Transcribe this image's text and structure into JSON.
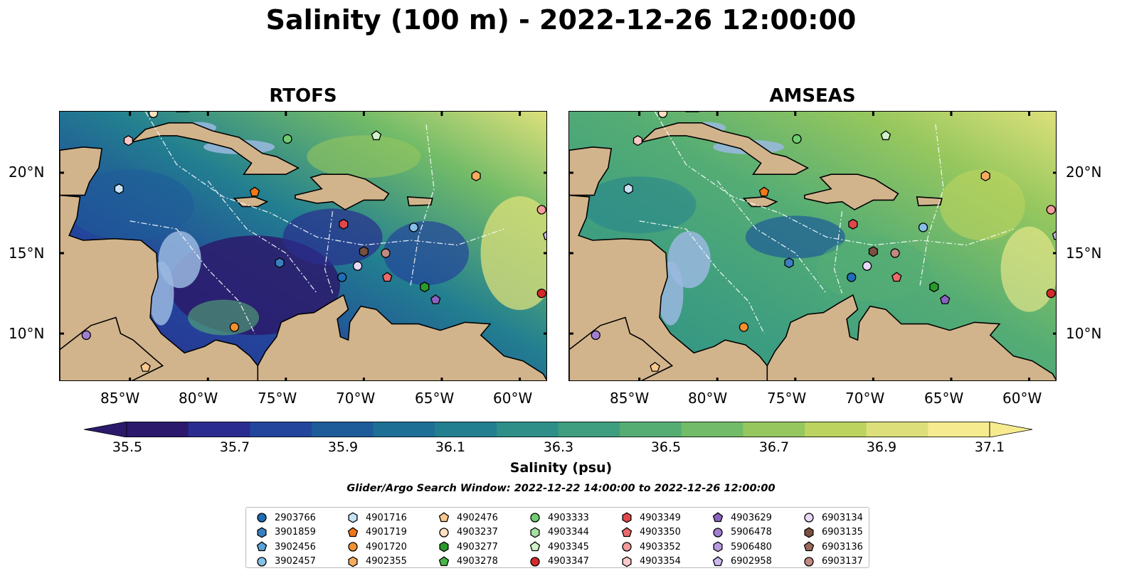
{
  "title": "Salinity (100 m) - 2022-12-26 12:00:00",
  "maps": [
    {
      "title": "RTOFS",
      "style": "rtofs"
    },
    {
      "title": "AMSEAS",
      "style": "amseas"
    }
  ],
  "axes": {
    "lon_ticks": [
      "85°W",
      "80°W",
      "75°W",
      "70°W",
      "65°W",
      "60°W"
    ],
    "lat_ticks": [
      "20°N",
      "15°N",
      "10°N"
    ],
    "lon_range": [
      -89.5,
      -58.2
    ],
    "lat_range": [
      7.0,
      23.8
    ]
  },
  "colorbar": {
    "label": "Salinity (psu)",
    "ticks": [
      "35.5",
      "35.7",
      "35.9",
      "36.1",
      "36.3",
      "36.5",
      "36.7",
      "36.9",
      "37.1"
    ],
    "range": [
      35.4,
      37.2
    ],
    "colors": [
      "#2b1a6b",
      "#2a2d8f",
      "#23459b",
      "#1e5b99",
      "#1d6f96",
      "#227f90",
      "#2d8f88",
      "#3e9e7f",
      "#55ad74",
      "#72bb68",
      "#96c75e",
      "#bcd35f",
      "#dde07a",
      "#f6ec8f"
    ],
    "extend": "both"
  },
  "search_window": "Glider/Argo Search Window: 2022-12-22 14:00:00 to 2022-12-26 12:00:00",
  "legend": [
    {
      "id": "2903766",
      "marker": "circle",
      "color": "#1f6db5"
    },
    {
      "id": "3901859",
      "marker": "hexagon",
      "color": "#3a80c0"
    },
    {
      "id": "3902456",
      "marker": "pentagon",
      "color": "#5aa3d8"
    },
    {
      "id": "3902457",
      "marker": "circle",
      "color": "#86bfe8"
    },
    {
      "id": "4901716",
      "marker": "hexagon",
      "color": "#c6e2f5"
    },
    {
      "id": "4901719",
      "marker": "pentagon",
      "color": "#f07818"
    },
    {
      "id": "4901720",
      "marker": "circle",
      "color": "#f39030"
    },
    {
      "id": "4902355",
      "marker": "hexagon",
      "color": "#f6ab5e"
    },
    {
      "id": "4902476",
      "marker": "pentagon",
      "color": "#f9c88e"
    },
    {
      "id": "4903237",
      "marker": "circle",
      "color": "#fde0c0"
    },
    {
      "id": "4903277",
      "marker": "hexagon",
      "color": "#2a9a2a"
    },
    {
      "id": "4903278",
      "marker": "pentagon",
      "color": "#48b648"
    },
    {
      "id": "4903333",
      "marker": "circle",
      "color": "#6fcc6f"
    },
    {
      "id": "4903344",
      "marker": "hexagon",
      "color": "#a4e0a0"
    },
    {
      "id": "4903345",
      "marker": "pentagon",
      "color": "#d0f2c8"
    },
    {
      "id": "4903347",
      "marker": "circle",
      "color": "#d42a2a"
    },
    {
      "id": "4903349",
      "marker": "hexagon",
      "color": "#e04848"
    },
    {
      "id": "4903350",
      "marker": "pentagon",
      "color": "#ec6a6a"
    },
    {
      "id": "4903352",
      "marker": "circle",
      "color": "#f49a9a"
    },
    {
      "id": "4903354",
      "marker": "hexagon",
      "color": "#fac8c8"
    },
    {
      "id": "4903629",
      "marker": "pentagon",
      "color": "#8a62c0"
    },
    {
      "id": "5906478",
      "marker": "circle",
      "color": "#a07fd0"
    },
    {
      "id": "5906480",
      "marker": "hexagon",
      "color": "#b89ae0"
    },
    {
      "id": "6902958",
      "marker": "pentagon",
      "color": "#cdb8ee"
    },
    {
      "id": "6903134",
      "marker": "circle",
      "color": "#e8d8f8"
    },
    {
      "id": "6903135",
      "marker": "hexagon",
      "color": "#7a5040"
    },
    {
      "id": "6903136",
      "marker": "pentagon",
      "color": "#9a6a5a"
    },
    {
      "id": "6903137",
      "marker": "circle",
      "color": "#c08a80"
    }
  ],
  "floats": [
    {
      "id": "2903766",
      "lon": -71.4,
      "lat": 13.5
    },
    {
      "id": "3901859",
      "lon": -75.4,
      "lat": 14.4
    },
    {
      "id": "3902457",
      "lon": -66.8,
      "lat": 16.6
    },
    {
      "id": "4901716",
      "lon": -85.7,
      "lat": 19.0
    },
    {
      "id": "4901719",
      "lon": -77.0,
      "lat": 18.8
    },
    {
      "id": "4901720",
      "lon": -78.3,
      "lat": 10.4
    },
    {
      "id": "4902355",
      "lon": -62.8,
      "lat": 19.8
    },
    {
      "id": "4902476",
      "lon": -84.0,
      "lat": 7.9
    },
    {
      "id": "4903237",
      "lon": -83.5,
      "lat": 23.7
    },
    {
      "id": "4903277",
      "lon": -66.1,
      "lat": 12.9
    },
    {
      "id": "4903333",
      "lon": -74.9,
      "lat": 22.1
    },
    {
      "id": "4903345",
      "lon": -69.2,
      "lat": 22.3
    },
    {
      "id": "4903347",
      "lon": -58.6,
      "lat": 12.5
    },
    {
      "id": "4903349",
      "lon": -71.3,
      "lat": 16.8
    },
    {
      "id": "4903350",
      "lon": -68.5,
      "lat": 13.5
    },
    {
      "id": "4903352",
      "lon": -58.6,
      "lat": 17.7
    },
    {
      "id": "4903354",
      "lon": -85.1,
      "lat": 22.0
    },
    {
      "id": "4903629",
      "lon": -65.4,
      "lat": 12.1
    },
    {
      "id": "6902958",
      "lon": -58.2,
      "lat": 16.1
    },
    {
      "id": "6903134",
      "lon": -70.4,
      "lat": 14.2
    },
    {
      "id": "6903135",
      "lon": -70.0,
      "lat": 15.1
    },
    {
      "id": "6903137",
      "lon": -68.6,
      "lat": 15.0
    },
    {
      "id": "5906478",
      "lon": -87.8,
      "lat": 9.9
    }
  ]
}
